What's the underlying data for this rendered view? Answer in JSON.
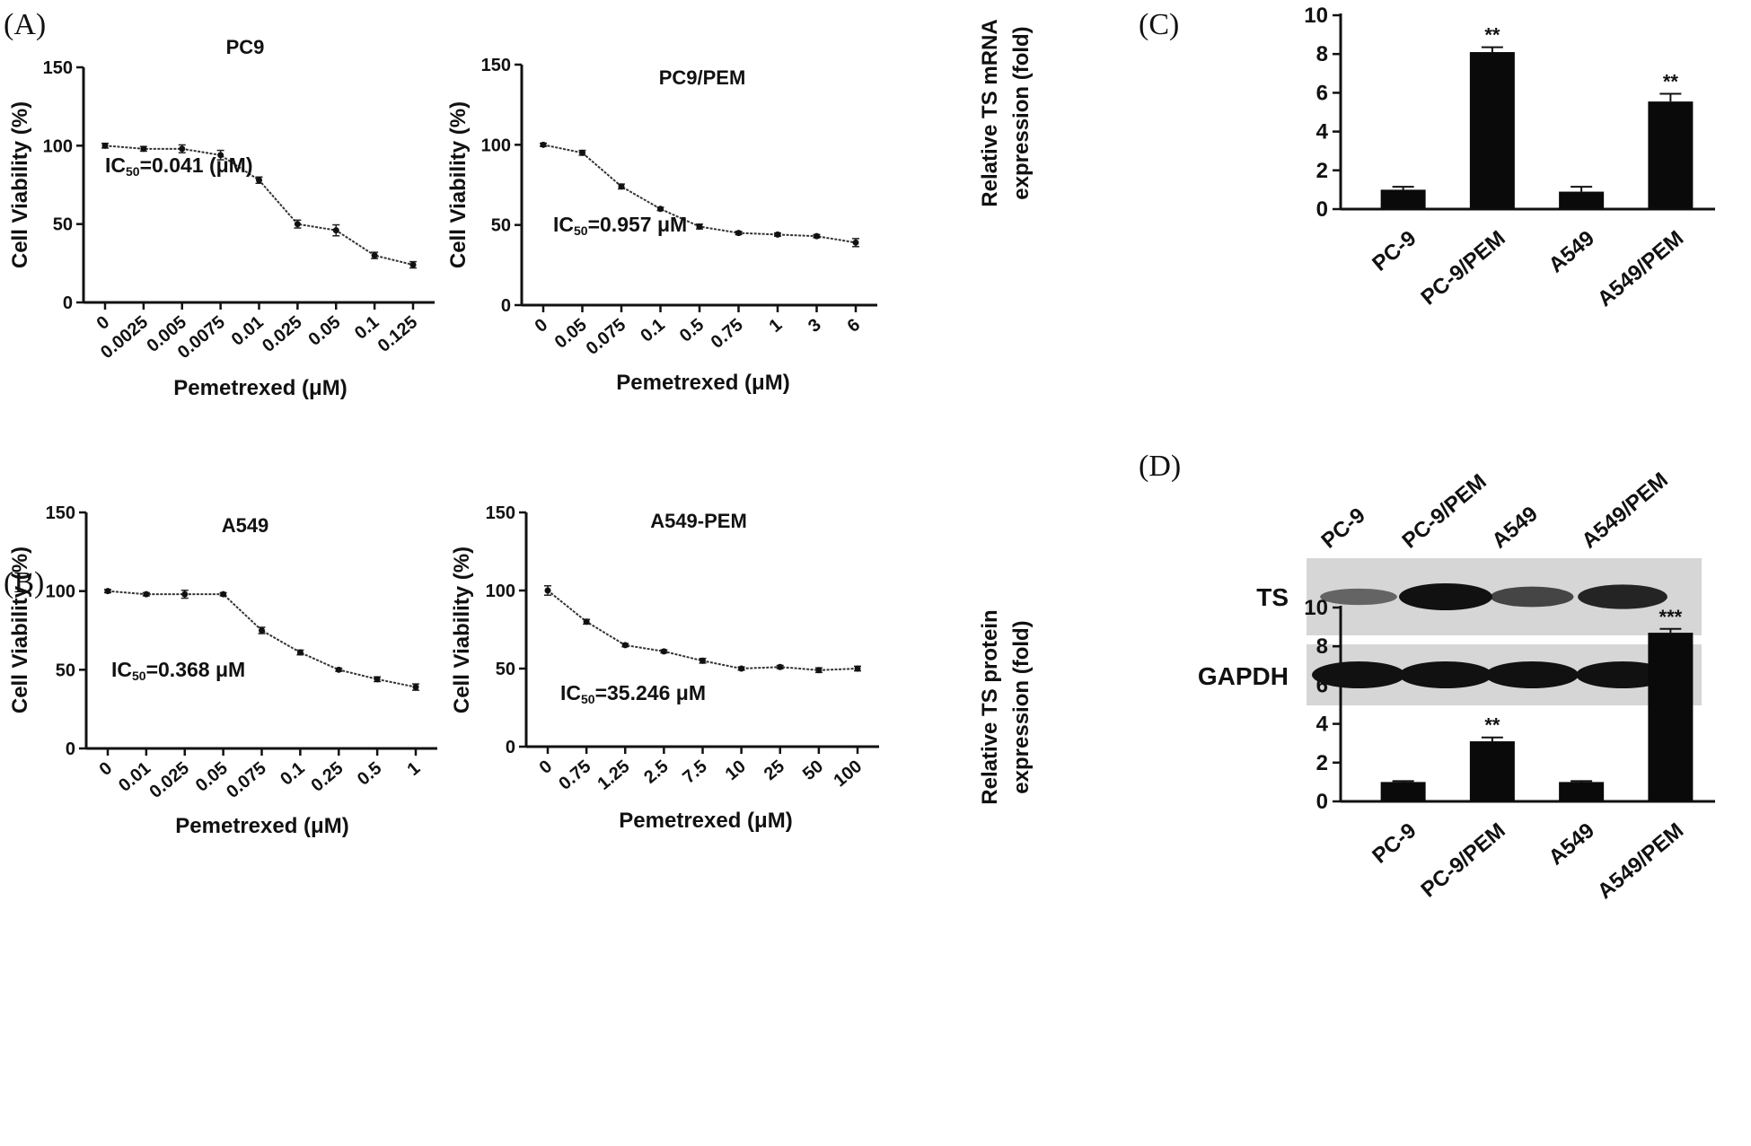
{
  "panel_labels": {
    "A": "(A)",
    "B": "(B)",
    "C": "(C)",
    "D": "(D)"
  },
  "colors": {
    "line": "#333333",
    "bar": "#0a0a0a",
    "blot_bg": "#d6d6d6",
    "band": "#111111"
  },
  "chart_data": [
    {
      "id": "pc9",
      "type": "line",
      "title": "PC9",
      "xlabel": "Pemetrexed (μM)",
      "ylabel": "Cell Viability (%)",
      "categories": [
        "0",
        "0.0025",
        "0.005",
        "0.0075",
        "0.01",
        "0.025",
        "0.05",
        "0.1",
        "0.125"
      ],
      "values": [
        100,
        98,
        98,
        94,
        78,
        50,
        46,
        30,
        24
      ],
      "errors": [
        1.5,
        1.5,
        2.5,
        3,
        2,
        2.5,
        3.5,
        2,
        2
      ],
      "ylim": [
        0,
        150
      ],
      "yticks": [
        "0",
        "50",
        "100",
        "150"
      ],
      "annotation": {
        "prefix": "IC",
        "sub": "50",
        "text": "=0.041 (μM)"
      }
    },
    {
      "id": "pc9pem",
      "type": "line",
      "title": "PC9/PEM",
      "xlabel": "Pemetrexed (μM)",
      "ylabel": "Cell Viability (%)",
      "categories": [
        "0",
        "0.05",
        "0.075",
        "0.1",
        "0.5",
        "0.75",
        "1",
        "3",
        "6"
      ],
      "values": [
        100,
        95,
        74,
        60,
        49,
        45,
        44,
        43,
        39
      ],
      "errors": [
        1,
        1.5,
        1.5,
        1,
        1.5,
        1,
        1,
        1,
        2.5
      ],
      "ylim": [
        0,
        150
      ],
      "yticks": [
        "0",
        "50",
        "100",
        "150"
      ],
      "annotation": {
        "prefix": "IC",
        "sub": "50",
        "text": "=0.957 μM"
      }
    },
    {
      "id": "a549",
      "type": "line",
      "title": "A549",
      "xlabel": "Pemetrexed (μM)",
      "ylabel": "Cell Viability (%)",
      "categories": [
        "0",
        "0.01",
        "0.025",
        "0.05",
        "0.075",
        "0.1",
        "0.25",
        "0.5",
        "1"
      ],
      "values": [
        100,
        98,
        98,
        98,
        75,
        61,
        50,
        44,
        39
      ],
      "errors": [
        1,
        1,
        2.5,
        1,
        2,
        1.5,
        1,
        1.5,
        2
      ],
      "ylim": [
        0,
        150
      ],
      "yticks": [
        "0",
        "50",
        "100",
        "150"
      ],
      "annotation": {
        "prefix": "IC",
        "sub": "50",
        "text": "=0.368 μM"
      }
    },
    {
      "id": "a549pem",
      "type": "line",
      "title": "A549-PEM",
      "xlabel": "Pemetrexed (μM)",
      "ylabel": "Cell Viability (%)",
      "categories": [
        "0",
        "0.75",
        "1.25",
        "2.5",
        "7.5",
        "10",
        "25",
        "50",
        "100"
      ],
      "values": [
        100,
        80,
        65,
        61,
        55,
        50,
        51,
        49,
        50
      ],
      "errors": [
        3,
        1.5,
        1,
        1,
        1.5,
        1,
        1,
        1.5,
        1.5
      ],
      "ylim": [
        0,
        150
      ],
      "yticks": [
        "0",
        "50",
        "100",
        "150"
      ],
      "annotation": {
        "prefix": "IC",
        "sub": "50",
        "text": "=35.246 μM"
      }
    },
    {
      "id": "mrna",
      "type": "bar",
      "title": "",
      "xlabel": "",
      "ylabel": [
        "Relative TS mRNA",
        "expression (fold)"
      ],
      "categories": [
        "PC-9",
        "PC-9/PEM",
        "A549",
        "A549/PEM"
      ],
      "values": [
        1.0,
        8.1,
        0.9,
        5.55
      ],
      "errors": [
        0.15,
        0.25,
        0.25,
        0.4
      ],
      "significance": [
        "",
        "**",
        "",
        "**"
      ],
      "ylim": [
        0,
        10
      ],
      "yticks": [
        "0",
        "2",
        "4",
        "6",
        "8",
        "10"
      ]
    },
    {
      "id": "protein",
      "type": "bar",
      "title": "",
      "xlabel": "",
      "ylabel": [
        "Relative TS protein",
        "expression (fold)"
      ],
      "categories": [
        "PC-9",
        "PC-9/PEM",
        "A549",
        "A549/PEM"
      ],
      "values": [
        1.0,
        3.1,
        1.0,
        8.7
      ],
      "errors": [
        0.05,
        0.2,
        0.05,
        0.2
      ],
      "significance": [
        "",
        "**",
        "",
        "***"
      ],
      "ylim": [
        0,
        10
      ],
      "yticks": [
        "0",
        "2",
        "4",
        "6",
        "8",
        "10"
      ]
    }
  ],
  "western_blot": {
    "lanes": [
      "PC-9",
      "PC-9/PEM",
      "A549",
      "A549/PEM"
    ],
    "rows": [
      {
        "label": "TS",
        "intensity": [
          0.35,
          1.0,
          0.6,
          0.85
        ]
      },
      {
        "label": "GAPDH",
        "intensity": [
          1.0,
          1.0,
          1.0,
          1.0
        ]
      }
    ]
  }
}
